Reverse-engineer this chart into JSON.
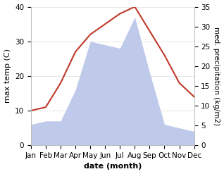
{
  "months": [
    "Jan",
    "Feb",
    "Mar",
    "Apr",
    "May",
    "Jun",
    "Jul",
    "Aug",
    "Sep",
    "Oct",
    "Nov",
    "Dec"
  ],
  "temperature": [
    10,
    11,
    18,
    27,
    32,
    35,
    38,
    40,
    33,
    26,
    18,
    14
  ],
  "precipitation": [
    6,
    7,
    7,
    16,
    30,
    29,
    28,
    37,
    21,
    6,
    5,
    4
  ],
  "temp_color": "#c0392b",
  "precip_fill_color": "#bfc9ea",
  "temp_ylim": [
    0,
    40
  ],
  "precip_ylim": [
    0,
    35
  ],
  "xlabel": "date (month)",
  "ylabel_left": "max temp (C)",
  "ylabel_right": "med. precipitation (kg/m2)",
  "bg_color": "#ffffff",
  "spine_color": "#bbbbbb",
  "label_fontsize": 8,
  "tick_fontsize": 7.5
}
